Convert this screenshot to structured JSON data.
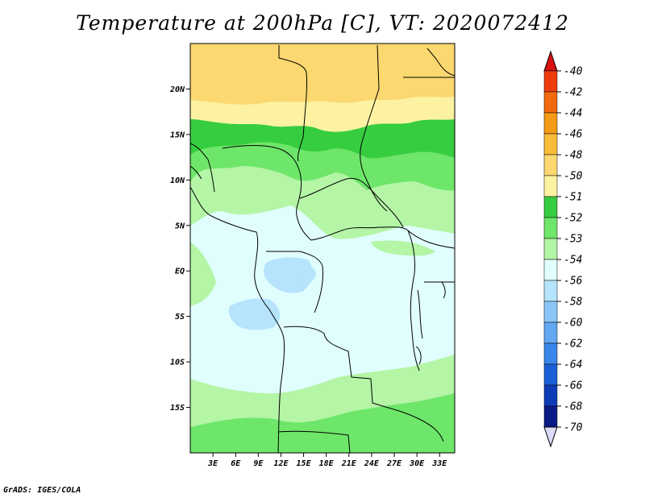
{
  "title": "Temperature at 200hPa [C], VT: 2020072412",
  "credit": "GrADS: IGES/COLA",
  "map": {
    "lon_range": [
      0,
      35
    ],
    "lat_range": [
      -20,
      25
    ],
    "lon_ticks": [
      {
        "value": 3,
        "label": "3E"
      },
      {
        "value": 6,
        "label": "6E"
      },
      {
        "value": 9,
        "label": "9E"
      },
      {
        "value": 12,
        "label": "12E"
      },
      {
        "value": 15,
        "label": "15E"
      },
      {
        "value": 18,
        "label": "18E"
      },
      {
        "value": 21,
        "label": "21E"
      },
      {
        "value": 24,
        "label": "24E"
      },
      {
        "value": 27,
        "label": "27E"
      },
      {
        "value": 30,
        "label": "30E"
      },
      {
        "value": 33,
        "label": "33E"
      }
    ],
    "lat_ticks": [
      {
        "value": 20,
        "label": "20N"
      },
      {
        "value": 15,
        "label": "15N"
      },
      {
        "value": 10,
        "label": "10N"
      },
      {
        "value": 5,
        "label": "5N"
      },
      {
        "value": 0,
        "label": "EQ"
      },
      {
        "value": -5,
        "label": "5S"
      },
      {
        "value": -10,
        "label": "10S"
      },
      {
        "value": -15,
        "label": "15S"
      }
    ]
  },
  "colorbar": {
    "levels": [
      {
        "label": "-40",
        "color": "#e01010"
      },
      {
        "label": "-42",
        "color": "#f03c0c"
      },
      {
        "label": "-44",
        "color": "#f26a0e"
      },
      {
        "label": "-46",
        "color": "#f59a16"
      },
      {
        "label": "-48",
        "color": "#f8bc3a"
      },
      {
        "label": "-50",
        "color": "#fbd870"
      },
      {
        "label": "-51",
        "color": "#fdf2a2"
      },
      {
        "label": "-52",
        "color": "#37cd40"
      },
      {
        "label": "-53",
        "color": "#6ee66a"
      },
      {
        "label": "-54",
        "color": "#b4f5a6"
      },
      {
        "label": "-56",
        "color": "#e0fefe"
      },
      {
        "label": "-58",
        "color": "#b5e4fc"
      },
      {
        "label": "-60",
        "color": "#8cc6f8"
      },
      {
        "label": "-62",
        "color": "#62a8f2"
      },
      {
        "label": "-64",
        "color": "#3b86ea"
      },
      {
        "label": "-66",
        "color": "#1c60d8"
      },
      {
        "label": "-68",
        "color": "#0e3cb6"
      },
      {
        "label": "-70",
        "color": "#0a1a86"
      }
    ],
    "top_triangle_color": "#d81010",
    "bottom_triangle_color": "#dcdcf8"
  }
}
